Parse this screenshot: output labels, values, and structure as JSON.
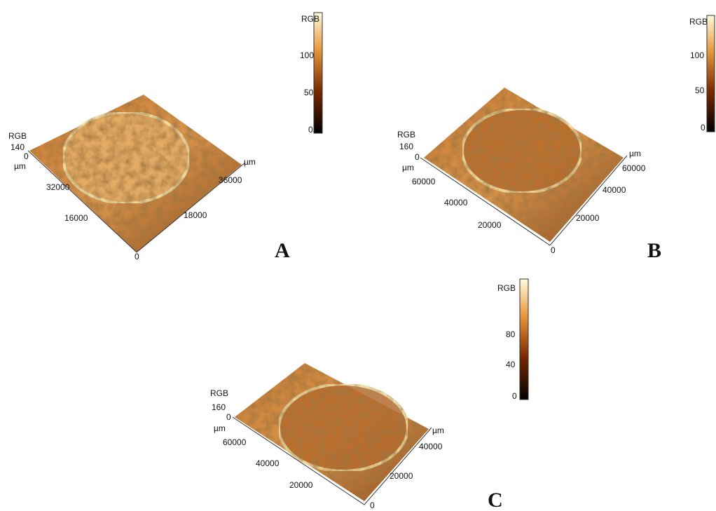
{
  "panels": [
    {
      "label": "A",
      "colorbar": {
        "title": "RGB",
        "ticks": [
          100,
          50,
          0
        ]
      },
      "z_axis": {
        "title": "RGB",
        "max": 140,
        "min": 0,
        "unit": "µm"
      },
      "left_axis": {
        "ticks": [
          32000,
          16000,
          0
        ]
      },
      "right_axis": {
        "unit": "µm",
        "ticks": [
          36000,
          18000
        ]
      }
    },
    {
      "label": "B",
      "colorbar": {
        "title": "RGB",
        "ticks": [
          100,
          50,
          0
        ]
      },
      "z_axis": {
        "title": "RGB",
        "max": 160,
        "min": 0,
        "unit": "µm"
      },
      "left_axis": {
        "ticks": [
          60000,
          40000,
          20000,
          0
        ]
      },
      "right_axis": {
        "unit": "µm",
        "ticks": [
          60000,
          40000,
          20000
        ]
      }
    },
    {
      "label": "C",
      "colorbar": {
        "title": "RGB",
        "ticks": [
          80,
          40,
          0
        ]
      },
      "z_axis": {
        "title": "RGB",
        "max": 160,
        "min": 0,
        "unit": "µm"
      },
      "left_axis": {
        "ticks": [
          60000,
          40000,
          20000,
          0
        ]
      },
      "right_axis": {
        "unit": "µm",
        "ticks": [
          40000,
          20000
        ]
      }
    }
  ]
}
